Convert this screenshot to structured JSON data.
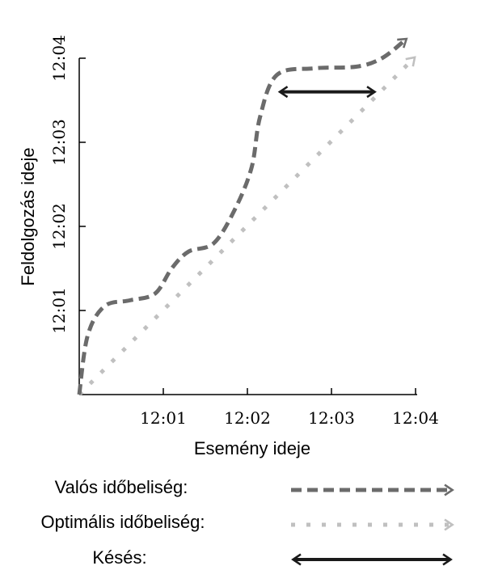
{
  "chart_data": {
    "type": "line",
    "title": "",
    "xlabel": "Esemény ideje",
    "ylabel": "Feldolgozás ideje",
    "x_ticks": [
      "12:01",
      "12:02",
      "12:03",
      "12:04"
    ],
    "y_ticks": [
      "12:01",
      "12:02",
      "12:03",
      "12:04"
    ],
    "xlim": [
      0,
      4
    ],
    "ylim": [
      0,
      4
    ],
    "grid": false,
    "legend_position": "bottom",
    "series": [
      {
        "name": "Valós időbeliség",
        "style": "dashed",
        "color": "#6b6b6b",
        "points": [
          [
            0,
            0
          ],
          [
            0.1,
            0.7
          ],
          [
            0.3,
            1.05
          ],
          [
            0.6,
            1.12
          ],
          [
            0.9,
            1.2
          ],
          [
            1.1,
            1.5
          ],
          [
            1.3,
            1.7
          ],
          [
            1.6,
            1.8
          ],
          [
            1.85,
            2.2
          ],
          [
            2.05,
            2.7
          ],
          [
            2.15,
            3.3
          ],
          [
            2.35,
            3.8
          ],
          [
            2.8,
            3.88
          ],
          [
            3.3,
            3.9
          ],
          [
            3.6,
            4.0
          ],
          [
            3.88,
            4.22
          ]
        ]
      },
      {
        "name": "Optimális időbeliség",
        "style": "dotted",
        "color": "#c0c0c0",
        "points": [
          [
            0,
            0
          ],
          [
            3.98,
            4.0
          ]
        ]
      }
    ],
    "annotations": [
      {
        "name": "Késés",
        "type": "double-arrow",
        "color": "#1a1a1a",
        "x_start": 2.4,
        "x_end": 3.5,
        "y": 3.6
      }
    ]
  },
  "legend": [
    {
      "label": "Valós időbeliség:",
      "style": "dashed"
    },
    {
      "label": "Optimális időbeliség:",
      "style": "dotted"
    },
    {
      "label": "Késés:",
      "style": "double-arrow"
    }
  ]
}
